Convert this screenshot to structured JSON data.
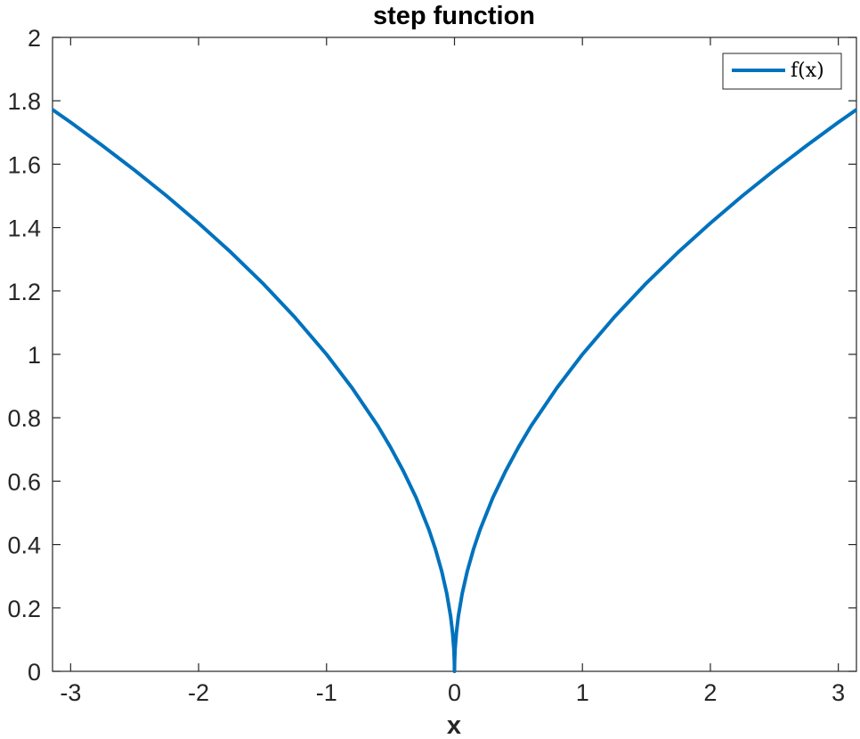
{
  "chart_data": {
    "type": "line",
    "title": "step function",
    "xlabel": "x",
    "ylabel": "",
    "xlim": [
      -3.14159,
      3.14159
    ],
    "ylim": [
      0,
      2
    ],
    "xticks": [
      -3,
      -2,
      -1,
      0,
      1,
      2,
      3
    ],
    "yticks": [
      0,
      0.2,
      0.4,
      0.6,
      0.8,
      1,
      1.2,
      1.4,
      1.6,
      1.8,
      2
    ],
    "xtick_labels": [
      "-3",
      "-2",
      "-1",
      "0",
      "1",
      "2",
      "3"
    ],
    "ytick_labels": [
      "0",
      "0.2",
      "0.4",
      "0.6",
      "0.8",
      "1",
      "1.2",
      "1.4",
      "1.6",
      "1.8",
      "2"
    ],
    "grid": false,
    "legend_position": "top-right",
    "series": [
      {
        "name": "f(x)",
        "color": "#0072BD",
        "x": [
          -3.1416,
          -3.0,
          -2.75,
          -2.5,
          -2.25,
          -2.0,
          -1.75,
          -1.5,
          -1.25,
          -1.0,
          -0.8,
          -0.6,
          -0.5,
          -0.4,
          -0.3,
          -0.2,
          -0.15,
          -0.1,
          -0.06,
          -0.03,
          -0.015,
          -0.005,
          -0.001,
          0.0,
          0.001,
          0.005,
          0.015,
          0.03,
          0.06,
          0.1,
          0.15,
          0.2,
          0.3,
          0.4,
          0.5,
          0.6,
          0.8,
          1.0,
          1.25,
          1.5,
          1.75,
          2.0,
          2.25,
          2.5,
          2.75,
          3.0,
          3.1416
        ],
        "y": [
          1.772,
          1.732,
          1.658,
          1.581,
          1.5,
          1.414,
          1.323,
          1.225,
          1.118,
          1.0,
          0.894,
          0.775,
          0.707,
          0.632,
          0.548,
          0.447,
          0.387,
          0.316,
          0.245,
          0.173,
          0.122,
          0.071,
          0.032,
          0.0,
          0.032,
          0.071,
          0.122,
          0.173,
          0.245,
          0.316,
          0.387,
          0.447,
          0.548,
          0.632,
          0.707,
          0.775,
          0.894,
          1.0,
          1.118,
          1.225,
          1.323,
          1.414,
          1.5,
          1.581,
          1.658,
          1.732,
          1.772
        ]
      }
    ]
  }
}
